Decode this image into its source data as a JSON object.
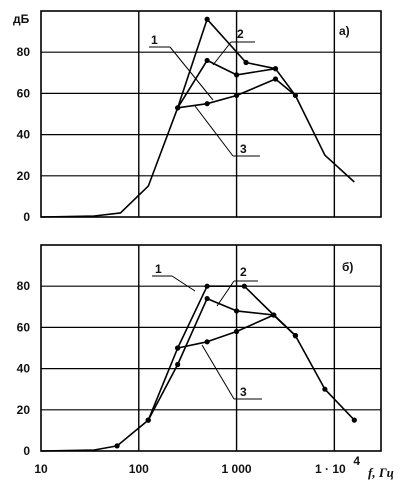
{
  "chart_data": [
    {
      "type": "line",
      "panel_label": "а)",
      "ylabel": "дБ",
      "xscale": "log",
      "xlim": [
        10,
        30000
      ],
      "ylim": [
        0,
        100
      ],
      "yticks": [
        0,
        20,
        40,
        60,
        80
      ],
      "grid": true,
      "series": [
        {
          "name": "1",
          "points": [
            [
              10,
              0
            ],
            [
              35,
              0.5
            ],
            [
              65,
              2
            ],
            [
              125,
              15
            ],
            [
              250,
              53
            ],
            [
              500,
              96
            ],
            [
              1250,
              75
            ],
            [
              2500,
              72
            ],
            [
              4000,
              59
            ],
            [
              8000,
              30
            ],
            [
              16000,
              17
            ]
          ],
          "markers": [
            false,
            false,
            false,
            false,
            false,
            true,
            true,
            true,
            false,
            false,
            false
          ]
        },
        {
          "name": "2",
          "points": [
            [
              250,
              53
            ],
            [
              500,
              76
            ],
            [
              1000,
              69
            ],
            [
              2500,
              72
            ]
          ]
        },
        {
          "name": "3",
          "points": [
            [
              250,
              53
            ],
            [
              500,
              55
            ],
            [
              1000,
              59
            ],
            [
              2500,
              67
            ],
            [
              4000,
              59
            ]
          ]
        }
      ]
    },
    {
      "type": "line",
      "panel_label": "б)",
      "xlabel": "f, Гц",
      "xscale": "log",
      "xlim": [
        10,
        30000
      ],
      "ylim": [
        0,
        100
      ],
      "yticks": [
        0,
        20,
        40,
        60,
        80
      ],
      "xticks": [
        "10",
        "100",
        "1 000",
        "1 · 10⁴"
      ],
      "grid": true,
      "series": [
        {
          "name": "1",
          "points": [
            [
              10,
              0
            ],
            [
              35,
              0.5
            ],
            [
              60,
              2.5
            ],
            [
              125,
              15
            ],
            [
              250,
              50
            ],
            [
              500,
              80
            ],
            [
              1200,
              80
            ],
            [
              2400,
              66
            ],
            [
              4000,
              56
            ],
            [
              8000,
              30
            ],
            [
              16000,
              15
            ]
          ],
          "markers": [
            false,
            false,
            true,
            true,
            true,
            true,
            true,
            false,
            true,
            true,
            true
          ]
        },
        {
          "name": "2",
          "points": [
            [
              125,
              15
            ],
            [
              250,
              42
            ],
            [
              500,
              74
            ],
            [
              1000,
              68
            ],
            [
              2400,
              66
            ],
            [
              4000,
              56
            ]
          ]
        },
        {
          "name": "3",
          "points": [
            [
              250,
              50
            ],
            [
              500,
              53
            ],
            [
              1000,
              58
            ],
            [
              2400,
              66
            ],
            [
              4000,
              56
            ]
          ]
        }
      ]
    }
  ],
  "top": {
    "ylabel": "дБ",
    "panel_label": "а)",
    "yticks": [
      "0",
      "20",
      "40",
      "60",
      "80"
    ],
    "curve_labels": [
      "1",
      "2",
      "3"
    ]
  },
  "bottom": {
    "panel_label": "б)",
    "yticks": [
      "0",
      "20",
      "40",
      "60",
      "80"
    ],
    "curve_labels": [
      "1",
      "2",
      "3"
    ],
    "xticks": [
      "10",
      "100",
      "1 000"
    ],
    "xtick_last": "1 · 10",
    "xtick_last_exp": "4",
    "xlabel": "f, Гц"
  }
}
